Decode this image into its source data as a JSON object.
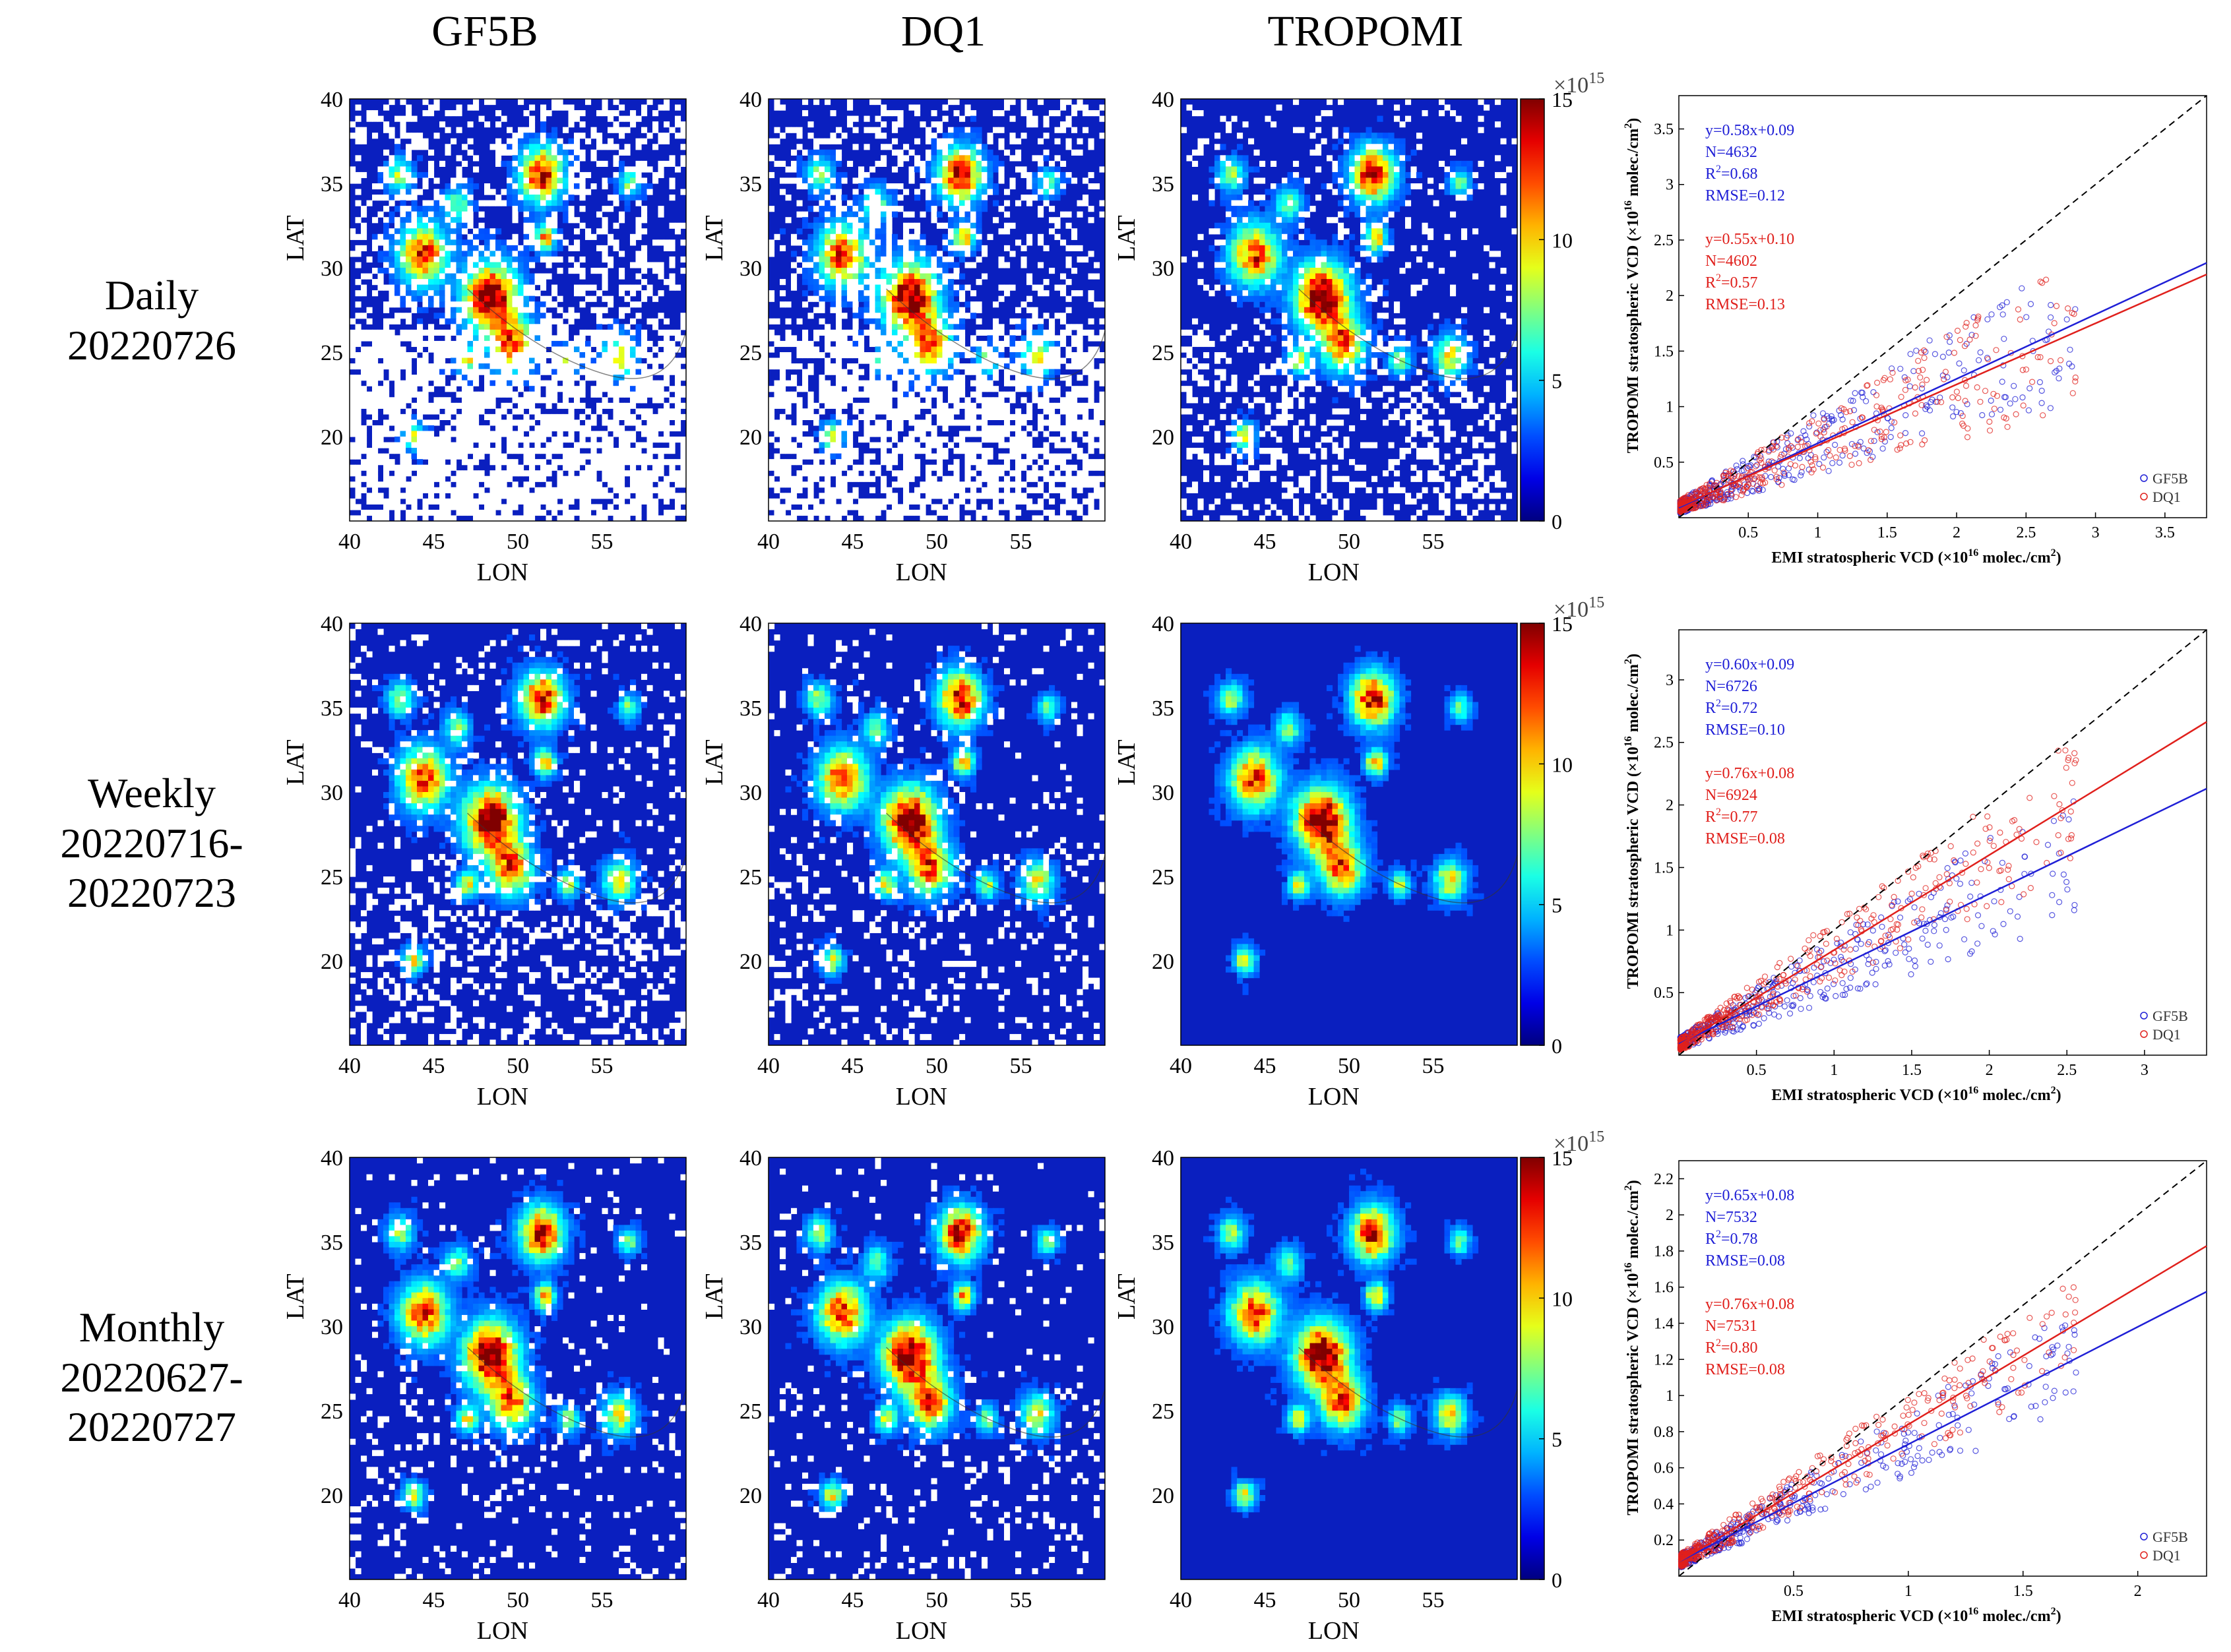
{
  "columns": [
    "GF5B",
    "DQ1",
    "TROPOMI"
  ],
  "rows": [
    {
      "label_line1": "Daily",
      "label_line2": "20220726",
      "label_line3": ""
    },
    {
      "label_line1": "Weekly",
      "label_line2": "20220716-",
      "label_line3": "20220723"
    },
    {
      "label_line1": "Monthly",
      "label_line2": "20220627-",
      "label_line3": "20220727"
    }
  ],
  "map_axes": {
    "xlabel": "LON",
    "ylabel": "LAT",
    "x_ticks": [
      "40",
      "45",
      "50",
      "55"
    ],
    "y_ticks": [
      "40",
      "35",
      "30",
      "25",
      "20"
    ]
  },
  "colorbar": {
    "multiplier": "×10",
    "exponent": "15",
    "ticks": [
      "15",
      "10",
      "5",
      "0"
    ],
    "range": [
      0,
      15
    ]
  },
  "colors": {
    "series_gf5b": "#1f1fd6",
    "series_dq1": "#e0201c",
    "map_background": "#0a1fbf",
    "missing": "#ffffff"
  },
  "chart_data": [
    {
      "type": "scatter",
      "panel": "Daily 20220726",
      "xlabel_pre": "EMI stratospheric VCD (×10",
      "xlabel_exp": "16",
      "xlabel_post": " molec./cm",
      "xlabel_sq": "2",
      "xlabel_end": ")",
      "ylabel_pre": "TROPOMI stratospheric VCD (×10",
      "ylabel_exp": "16",
      "ylabel_post": " molec./cm",
      "ylabel_sq": "2",
      "ylabel_end": ")",
      "xlim": [
        0,
        3.8
      ],
      "ylim": [
        0,
        3.8
      ],
      "x_ticks": [
        "0.5",
        "1",
        "1.5",
        "2",
        "2.5",
        "3",
        "3.5"
      ],
      "x_tick_values": [
        0.5,
        1,
        1.5,
        2,
        2.5,
        3,
        3.5
      ],
      "y_ticks": [
        "0.5",
        "1",
        "1.5",
        "2",
        "2.5",
        "3",
        "3.5"
      ],
      "y_tick_values": [
        0.5,
        1,
        1.5,
        2,
        2.5,
        3,
        3.5
      ],
      "series": [
        {
          "name": "GF5B",
          "fit": "y=0.58x+0.09",
          "N": "N=4632",
          "R2": "=0.68",
          "RMSE": "RMSE=0.12",
          "slope": 0.58,
          "intercept": 0.09,
          "spread": 0.9
        },
        {
          "name": "DQ1",
          "fit": "y=0.55x+0.10",
          "N": "N=4602",
          "R2": "=0.57",
          "RMSE": "RMSE=0.13",
          "slope": 0.55,
          "intercept": 0.1,
          "spread": 0.9
        }
      ],
      "legend": [
        "GF5B",
        "DQ1"
      ]
    },
    {
      "type": "scatter",
      "panel": "Weekly 20220716-20220723",
      "xlabel_pre": "EMI stratospheric VCD (×10",
      "xlabel_exp": "16",
      "xlabel_post": " molec./cm",
      "xlabel_sq": "2",
      "xlabel_end": ")",
      "ylabel_pre": "TROPOMI stratospheric VCD (×10",
      "ylabel_exp": "16",
      "ylabel_post": " molec./cm",
      "ylabel_sq": "2",
      "ylabel_end": ")",
      "xlim": [
        0,
        3.4
      ],
      "ylim": [
        0,
        3.4
      ],
      "x_ticks": [
        "0.5",
        "1",
        "1.5",
        "2",
        "2.5",
        "3"
      ],
      "x_tick_values": [
        0.5,
        1,
        1.5,
        2,
        2.5,
        3
      ],
      "y_ticks": [
        "0.5",
        "1",
        "1.5",
        "2",
        "2.5",
        "3"
      ],
      "y_tick_values": [
        0.5,
        1,
        1.5,
        2,
        2.5,
        3
      ],
      "series": [
        {
          "name": "GF5B",
          "fit": "y=0.60x+0.09",
          "N": "N=6726",
          "R2": "=0.72",
          "RMSE": "RMSE=0.10",
          "slope": 0.6,
          "intercept": 0.09,
          "spread": 0.8
        },
        {
          "name": "DQ1",
          "fit": "y=0.76x+0.08",
          "N": "N=6924",
          "R2": "=0.77",
          "RMSE": "RMSE=0.08",
          "slope": 0.76,
          "intercept": 0.08,
          "spread": 0.8
        }
      ],
      "legend": [
        "GF5B",
        "DQ1"
      ]
    },
    {
      "type": "scatter",
      "panel": "Monthly 20220627-20220727",
      "xlabel_pre": "EMI stratospheric VCD (×10",
      "xlabel_exp": "16",
      "xlabel_post": " molec./cm",
      "xlabel_sq": "2",
      "xlabel_end": ")",
      "ylabel_pre": "TROPOMI stratospheric VCD (×10",
      "ylabel_exp": "16",
      "ylabel_post": " molec./cm",
      "ylabel_sq": "2",
      "ylabel_end": ")",
      "xlim": [
        0,
        2.3
      ],
      "ylim": [
        0,
        2.3
      ],
      "x_ticks": [
        "0.5",
        "1",
        "1.5",
        "2"
      ],
      "x_tick_values": [
        0.5,
        1,
        1.5,
        2
      ],
      "y_ticks": [
        "0.2",
        "0.4",
        "0.6",
        "0.8",
        "1",
        "1.2",
        "1.4",
        "1.6",
        "1.8",
        "2",
        "2.2"
      ],
      "y_tick_values": [
        0.2,
        0.4,
        0.6,
        0.8,
        1,
        1.2,
        1.4,
        1.6,
        1.8,
        2,
        2.2
      ],
      "series": [
        {
          "name": "GF5B",
          "fit": "y=0.65x+0.08",
          "N": "N=7532",
          "R2": "=0.78",
          "RMSE": "RMSE=0.08",
          "slope": 0.65,
          "intercept": 0.08,
          "spread": 0.6
        },
        {
          "name": "DQ1",
          "fit": "y=0.76x+0.08",
          "N": "N=7531",
          "R2": "=0.80",
          "RMSE": "RMSE=0.08",
          "slope": 0.76,
          "intercept": 0.08,
          "spread": 0.6
        }
      ],
      "legend": [
        "GF5B",
        "DQ1"
      ]
    }
  ]
}
